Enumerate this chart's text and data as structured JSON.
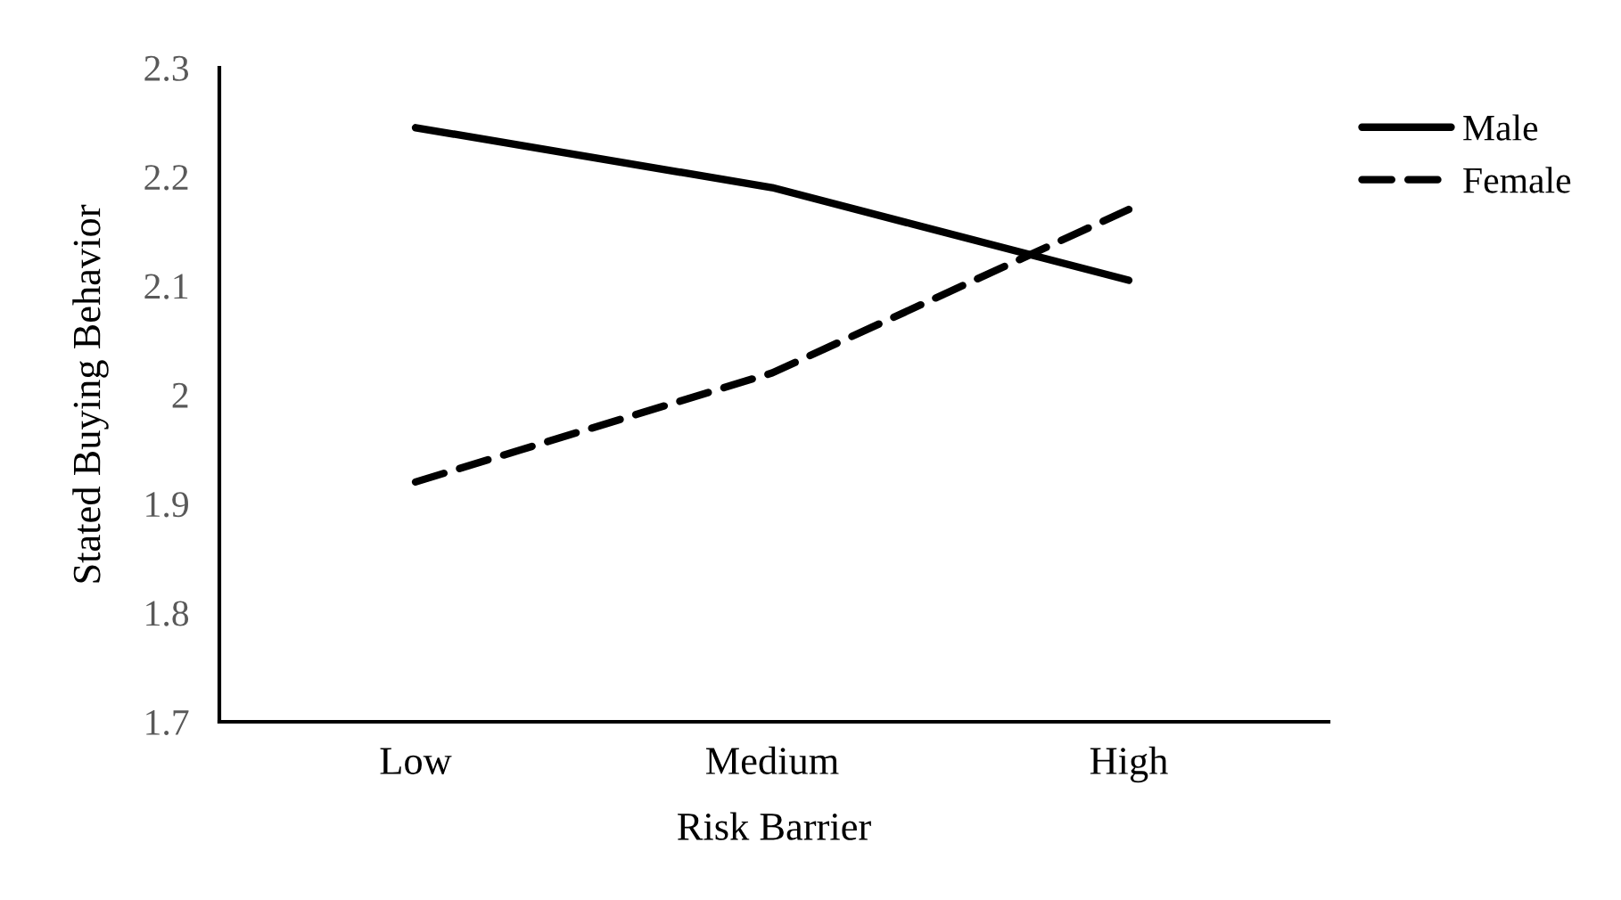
{
  "chart_data": {
    "type": "line",
    "xlabel": "Risk Barrier",
    "ylabel": "Stated Buying Behavior",
    "categories": [
      "Low",
      "Medium",
      "High"
    ],
    "series": [
      {
        "name": "Male",
        "color": "#000000",
        "line_style": "solid",
        "values": [
          2.245,
          2.19,
          2.105
        ]
      },
      {
        "name": "Female",
        "color": "#000000",
        "line_style": "dashed",
        "values": [
          1.92,
          2.02,
          2.17
        ]
      }
    ],
    "ylim": [
      1.7,
      2.3
    ],
    "yticks": [
      1.7,
      1.8,
      1.9,
      {
        "value": 2.0,
        "label": "2"
      },
      2.1,
      2.2,
      2.3
    ],
    "grid": false,
    "legend": "right",
    "marker": "none"
  }
}
